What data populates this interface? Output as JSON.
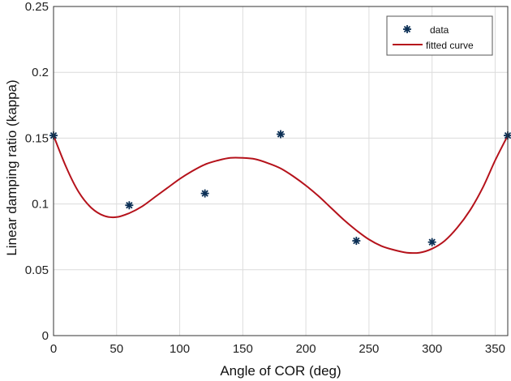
{
  "chart_data": {
    "type": "scatter",
    "title": "",
    "xlabel": "Angle of COR (deg)",
    "ylabel": "Linear damping ratio (kappa)",
    "xlim": [
      0,
      360
    ],
    "ylim": [
      0,
      0.25
    ],
    "xticks": [
      "0",
      "50",
      "100",
      "150",
      "200",
      "250",
      "300",
      "350"
    ],
    "yticks": [
      "0",
      "0.05",
      "0.1",
      "0.15",
      "0.2",
      "0.25"
    ],
    "xtick_values": [
      0,
      50,
      100,
      150,
      200,
      250,
      300,
      350
    ],
    "ytick_values": [
      0,
      0.05,
      0.1,
      0.15,
      0.2,
      0.25
    ],
    "grid": true,
    "legend_position": "top-right",
    "series": [
      {
        "name": "data",
        "kind": "markers",
        "marker": "asterisk",
        "color": "#0b2f55",
        "x": [
          0,
          60,
          120,
          180,
          240,
          300,
          360
        ],
        "y": [
          0.152,
          0.099,
          0.108,
          0.153,
          0.072,
          0.071,
          0.152
        ]
      },
      {
        "name": "fitted curve",
        "kind": "line",
        "color": "#b5121b",
        "x": [
          0,
          10,
          20,
          30,
          40,
          50,
          60,
          70,
          80,
          90,
          100,
          110,
          120,
          130,
          140,
          150,
          160,
          170,
          180,
          190,
          200,
          210,
          220,
          230,
          240,
          250,
          260,
          270,
          280,
          290,
          300,
          310,
          320,
          330,
          340,
          350,
          360
        ],
        "y": [
          0.152,
          0.128,
          0.109,
          0.097,
          0.091,
          0.09,
          0.093,
          0.098,
          0.105,
          0.112,
          0.119,
          0.125,
          0.13,
          0.133,
          0.135,
          0.135,
          0.134,
          0.131,
          0.127,
          0.121,
          0.114,
          0.106,
          0.097,
          0.088,
          0.08,
          0.073,
          0.068,
          0.065,
          0.063,
          0.063,
          0.066,
          0.072,
          0.082,
          0.095,
          0.112,
          0.133,
          0.152
        ]
      }
    ]
  }
}
